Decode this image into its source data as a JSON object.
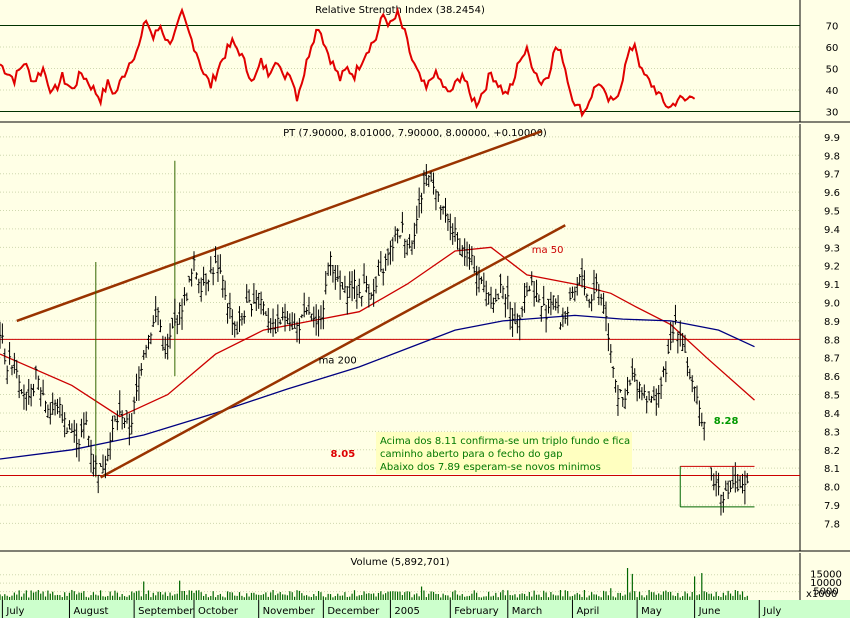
{
  "colors": {
    "background": "#FFFFE6",
    "axis_bg": "#CCFFCC",
    "price": "#000000",
    "rsi": "#E00000",
    "ma50": "#CC0000",
    "ma200": "#000080",
    "trendline": "#993300",
    "hline": "#CC0000",
    "volume": "#006600",
    "annotation_bg": "#FFFFC0",
    "annotation_text": "#007700",
    "level_label": "#DD0000",
    "level_label_green": "#009900"
  },
  "chart_data": [
    {
      "type": "line",
      "panel": "rsi",
      "title": "Relative Strength Index (38.2454)",
      "yticks": [
        "70",
        "60",
        "50",
        "40",
        "30"
      ],
      "ylim": [
        27,
        80
      ],
      "reference_lines": [
        70,
        30
      ],
      "series": [
        {
          "name": "RSI",
          "keypoints": [
            [
              0,
              52
            ],
            [
              6,
              45
            ],
            [
              10,
              53
            ],
            [
              14,
              44
            ],
            [
              18,
              50
            ],
            [
              22,
              38
            ],
            [
              26,
              46
            ],
            [
              30,
              40
            ],
            [
              34,
              48
            ],
            [
              38,
              42
            ],
            [
              42,
              36
            ],
            [
              45,
              43
            ],
            [
              48,
              38
            ],
            [
              52,
              48
            ],
            [
              55,
              55
            ],
            [
              58,
              60
            ],
            [
              61,
              73
            ],
            [
              64,
              64
            ],
            [
              67,
              70
            ],
            [
              70,
              62
            ],
            [
              73,
              66
            ],
            [
              76,
              75
            ],
            [
              79,
              66
            ],
            [
              82,
              58
            ],
            [
              85,
              48
            ],
            [
              88,
              42
            ],
            [
              91,
              50
            ],
            [
              94,
              57
            ],
            [
              97,
              62
            ],
            [
              100,
              58
            ],
            [
              103,
              50
            ],
            [
              106,
              44
            ],
            [
              109,
              53
            ],
            [
              112,
              48
            ],
            [
              115,
              55
            ],
            [
              118,
              46
            ],
            [
              121,
              49
            ],
            [
              124,
              37
            ],
            [
              127,
              48
            ],
            [
              130,
              62
            ],
            [
              133,
              70
            ],
            [
              136,
              60
            ],
            [
              139,
              52
            ],
            [
              142,
              45
            ],
            [
              145,
              50
            ],
            [
              148,
              47
            ],
            [
              151,
              54
            ],
            [
              154,
              60
            ],
            [
              157,
              64
            ],
            [
              160,
              75
            ],
            [
              163,
              70
            ],
            [
              166,
              75
            ],
            [
              169,
              66
            ],
            [
              172,
              54
            ],
            [
              175,
              46
            ],
            [
              178,
              40
            ],
            [
              181,
              48
            ],
            [
              184,
              44
            ],
            [
              187,
              38
            ],
            [
              190,
              42
            ],
            [
              193,
              48
            ],
            [
              196,
              38
            ],
            [
              199,
              34
            ],
            [
              202,
              40
            ],
            [
              205,
              48
            ],
            [
              208,
              43
            ],
            [
              211,
              38
            ],
            [
              214,
              42
            ],
            [
              217,
              55
            ],
            [
              220,
              58
            ],
            [
              223,
              50
            ],
            [
              226,
              43
            ],
            [
              229,
              48
            ],
            [
              232,
              60
            ],
            [
              235,
              55
            ],
            [
              238,
              40
            ],
            [
              241,
              32
            ],
            [
              244,
              30
            ],
            [
              247,
              38
            ],
            [
              250,
              44
            ],
            [
              253,
              36
            ],
            [
              256,
              34
            ],
            [
              259,
              42
            ],
            [
              262,
              55
            ],
            [
              265,
              62
            ],
            [
              268,
              48
            ],
            [
              271,
              44
            ],
            [
              274,
              40
            ],
            [
              277,
              34
            ],
            [
              280,
              32
            ],
            [
              283,
              36
            ],
            [
              286,
              35
            ],
            [
              290,
              38
            ]
          ]
        }
      ]
    },
    {
      "type": "ohlc",
      "panel": "price",
      "title": "PT (7.90000, 8.01000, 7.90000, 8.00000, +0.10000)",
      "ylim": [
        7.65,
        9.97
      ],
      "yticks": [
        "9.9",
        "9.8",
        "9.7",
        "9.6",
        "9.5",
        "9.4",
        "9.3",
        "9.2",
        "9.1",
        "9.0",
        "8.9",
        "8.8",
        "8.7",
        "8.6",
        "8.5",
        "8.4",
        "8.3",
        "8.2",
        "8.1",
        "8.0",
        "7.9",
        "7.8"
      ],
      "close_keypoints": [
        [
          0,
          8.85
        ],
        [
          3,
          8.65
        ],
        [
          6,
          8.7
        ],
        [
          9,
          8.55
        ],
        [
          12,
          8.45
        ],
        [
          15,
          8.6
        ],
        [
          18,
          8.5
        ],
        [
          21,
          8.4
        ],
        [
          24,
          8.45
        ],
        [
          27,
          8.35
        ],
        [
          30,
          8.3
        ],
        [
          33,
          8.25
        ],
        [
          36,
          8.35
        ],
        [
          39,
          8.12
        ],
        [
          42,
          8.08
        ],
        [
          45,
          8.2
        ],
        [
          48,
          8.35
        ],
        [
          51,
          8.4
        ],
        [
          54,
          8.3
        ],
        [
          57,
          8.5
        ],
        [
          60,
          8.75
        ],
        [
          63,
          8.85
        ],
        [
          66,
          8.95
        ],
        [
          69,
          8.7
        ],
        [
          72,
          8.85
        ],
        [
          75,
          8.95
        ],
        [
          78,
          9.05
        ],
        [
          81,
          9.2
        ],
        [
          84,
          9.1
        ],
        [
          87,
          9.15
        ],
        [
          90,
          9.2
        ],
        [
          93,
          9.1
        ],
        [
          96,
          8.95
        ],
        [
          99,
          8.85
        ],
        [
          102,
          8.95
        ],
        [
          105,
          9.0
        ],
        [
          108,
          9.05
        ],
        [
          111,
          8.95
        ],
        [
          114,
          8.85
        ],
        [
          117,
          8.9
        ],
        [
          120,
          8.95
        ],
        [
          123,
          8.85
        ],
        [
          126,
          8.9
        ],
        [
          129,
          8.95
        ],
        [
          132,
          8.85
        ],
        [
          135,
          9.0
        ],
        [
          138,
          9.25
        ],
        [
          141,
          9.1
        ],
        [
          144,
          9.05
        ],
        [
          147,
          9.1
        ],
        [
          150,
          9.05
        ],
        [
          153,
          9.1
        ],
        [
          156,
          9.05
        ],
        [
          159,
          9.15
        ],
        [
          162,
          9.25
        ],
        [
          165,
          9.35
        ],
        [
          168,
          9.4
        ],
        [
          171,
          9.3
        ],
        [
          174,
          9.45
        ],
        [
          177,
          9.65
        ],
        [
          180,
          9.7
        ],
        [
          183,
          9.55
        ],
        [
          186,
          9.45
        ],
        [
          189,
          9.4
        ],
        [
          192,
          9.3
        ],
        [
          195,
          9.25
        ],
        [
          198,
          9.2
        ],
        [
          201,
          9.1
        ],
        [
          204,
          9.05
        ],
        [
          207,
          9.0
        ],
        [
          210,
          9.1
        ],
        [
          213,
          8.95
        ],
        [
          216,
          8.9
        ],
        [
          219,
          9.05
        ],
        [
          222,
          9.1
        ],
        [
          225,
          9.0
        ],
        [
          228,
          8.95
        ],
        [
          231,
          9.05
        ],
        [
          234,
          8.9
        ],
        [
          237,
          8.95
        ],
        [
          240,
          9.05
        ],
        [
          243,
          9.15
        ],
        [
          246,
          9.0
        ],
        [
          249,
          9.1
        ],
        [
          252,
          9.0
        ],
        [
          255,
          8.75
        ],
        [
          258,
          8.5
        ],
        [
          261,
          8.45
        ],
        [
          264,
          8.6
        ],
        [
          267,
          8.55
        ],
        [
          270,
          8.5
        ],
        [
          273,
          8.45
        ],
        [
          276,
          8.55
        ],
        [
          279,
          8.7
        ],
        [
          282,
          8.9
        ],
        [
          285,
          8.8
        ],
        [
          288,
          8.6
        ],
        [
          291,
          8.45
        ],
        [
          294,
          8.35
        ]
      ],
      "gap_close_keypoints": [
        [
          297,
          8.05
        ],
        [
          300,
          8.0
        ],
        [
          303,
          7.95
        ],
        [
          306,
          8.02
        ],
        [
          309,
          7.97
        ],
        [
          312,
          8.0
        ]
      ],
      "lines": [
        {
          "name": "ma 50",
          "keypoints": [
            [
              0,
              8.72
            ],
            [
              30,
              8.55
            ],
            [
              50,
              8.38
            ],
            [
              70,
              8.5
            ],
            [
              90,
              8.72
            ],
            [
              110,
              8.85
            ],
            [
              130,
              8.9
            ],
            [
              150,
              8.95
            ],
            [
              170,
              9.1
            ],
            [
              190,
              9.28
            ],
            [
              205,
              9.3
            ],
            [
              220,
              9.15
            ],
            [
              240,
              9.1
            ],
            [
              255,
              9.05
            ],
            [
              265,
              8.98
            ],
            [
              280,
              8.88
            ],
            [
              295,
              8.7
            ],
            [
              315,
              8.47
            ]
          ]
        },
        {
          "name": "ma 200",
          "keypoints": [
            [
              0,
              8.15
            ],
            [
              30,
              8.2
            ],
            [
              60,
              8.28
            ],
            [
              90,
              8.4
            ],
            [
              120,
              8.53
            ],
            [
              150,
              8.65
            ],
            [
              170,
              8.75
            ],
            [
              190,
              8.85
            ],
            [
              210,
              8.9
            ],
            [
              240,
              8.93
            ],
            [
              260,
              8.91
            ],
            [
              280,
              8.9
            ],
            [
              300,
              8.85
            ],
            [
              315,
              8.76
            ]
          ]
        }
      ],
      "trendlines": [
        [
          [
            7,
            8.9
          ],
          [
            226,
            9.93
          ]
        ],
        [
          [
            42,
            8.05
          ],
          [
            236,
            9.42
          ]
        ]
      ],
      "horizontal_lines": [
        8.8,
        8.06
      ],
      "gap_box": {
        "x": [
          284,
          315
        ],
        "y": [
          7.89,
          8.11
        ]
      },
      "spikes": [
        {
          "x": 40,
          "y": [
            8.05,
            9.22
          ]
        },
        {
          "x": 73,
          "y": [
            8.6,
            9.77
          ]
        }
      ],
      "labels": [
        {
          "text": "ma 200",
          "x": 133,
          "y": 8.67,
          "color_key": "price"
        },
        {
          "text": "ma 50",
          "x": 222,
          "y": 9.27,
          "color_key": "ma50"
        },
        {
          "text": "8.05",
          "x": 138,
          "y": 8.16,
          "color_key": "level_label"
        },
        {
          "text": "8.28",
          "x": 298,
          "y": 8.34,
          "color_key": "level_label_green"
        }
      ]
    },
    {
      "type": "bar",
      "panel": "volume",
      "title": "Volume (5,892,701)",
      "yticks": [
        "15000",
        "10000",
        "5000"
      ],
      "unit": "x1000",
      "ylim": [
        0,
        19000
      ],
      "spikes": [
        {
          "x": 60,
          "value": 11000
        },
        {
          "x": 75,
          "value": 11500
        },
        {
          "x": 262,
          "value": 19000
        },
        {
          "x": 293,
          "value": 16000
        },
        {
          "x": 290,
          "value": 14000
        },
        {
          "x": 264,
          "value": 15500
        },
        {
          "x": 255,
          "value": 7000
        },
        {
          "x": 176,
          "value": 8000
        }
      ]
    }
  ],
  "x_axis": {
    "months": [
      {
        "label": "July",
        "x": 1
      },
      {
        "label": "August",
        "x": 29
      },
      {
        "label": "September",
        "x": 56
      },
      {
        "label": "October",
        "x": 81
      },
      {
        "label": "November",
        "x": 108
      },
      {
        "label": "December",
        "x": 135
      },
      {
        "label": "2005",
        "x": 163
      },
      {
        "label": "February",
        "x": 188
      },
      {
        "label": "March",
        "x": 212
      },
      {
        "label": "April",
        "x": 239
      },
      {
        "label": "May",
        "x": 266
      },
      {
        "label": "June",
        "x": 290
      },
      {
        "label": "July",
        "x": 317
      }
    ],
    "xlim": [
      0,
      334
    ]
  },
  "annotation": {
    "lines": [
      "Acima dos 8.11 confirma-se um triplo fundo e fica",
      "caminho aberto para o fecho do gap",
      "Abaixo dos 7.89 esperam-se novos minimos"
    ]
  }
}
